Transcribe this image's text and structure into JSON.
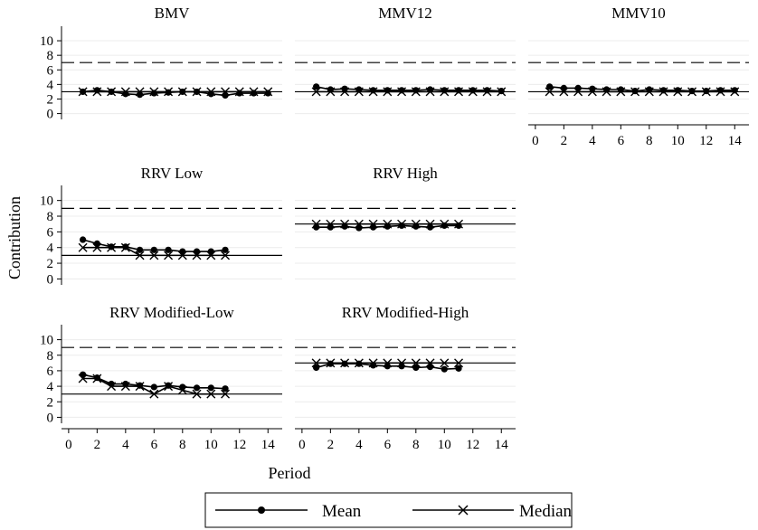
{
  "chart_data": {
    "type": "line",
    "ylabel": "Contribution",
    "xlabel": "Period",
    "x_ticks": [
      0,
      2,
      4,
      6,
      8,
      10,
      12,
      14
    ],
    "y_ticks": [
      0,
      2,
      4,
      6,
      8,
      10
    ],
    "xlim": [
      -0.5,
      15
    ],
    "ylim": [
      -0.3,
      11
    ],
    "grid": true,
    "legend": {
      "placement": "bottom-center",
      "entries": [
        {
          "name": "Mean",
          "marker": "circle"
        },
        {
          "name": "Median",
          "marker": "x"
        }
      ]
    },
    "panels": [
      {
        "title": "BMV",
        "reference_lines": {
          "solid": 3,
          "dashed": 7
        },
        "series": [
          {
            "name": "Mean",
            "x": [
              1,
              2,
              3,
              4,
              5,
              6,
              7,
              8,
              9,
              10,
              11,
              12,
              13,
              14
            ],
            "values": [
              3.0,
              3.2,
              3.0,
              2.7,
              2.6,
              2.8,
              2.9,
              3.0,
              3.0,
              2.7,
              2.5,
              2.8,
              2.8,
              2.8
            ]
          },
          {
            "name": "Median",
            "x": [
              1,
              2,
              3,
              4,
              5,
              6,
              7,
              8,
              9,
              10,
              11,
              12,
              13,
              14
            ],
            "values": [
              3,
              3,
              3,
              3,
              3,
              3,
              3,
              3,
              3,
              3,
              3,
              3,
              3,
              3
            ]
          }
        ]
      },
      {
        "title": "MMV12",
        "reference_lines": {
          "solid": 3,
          "dashed": 7
        },
        "series": [
          {
            "name": "Mean",
            "x": [
              1,
              2,
              3,
              4,
              5,
              6,
              7,
              8,
              9,
              10,
              11,
              12,
              13,
              14
            ],
            "values": [
              3.7,
              3.3,
              3.4,
              3.3,
              3.2,
              3.2,
              3.2,
              3.2,
              3.3,
              3.2,
              3.2,
              3.2,
              3.2,
              3.1
            ]
          },
          {
            "name": "Median",
            "x": [
              1,
              2,
              3,
              4,
              5,
              6,
              7,
              8,
              9,
              10,
              11,
              12,
              13,
              14
            ],
            "values": [
              3,
              3,
              3,
              3,
              3,
              3,
              3,
              3,
              3,
              3,
              3,
              3,
              3,
              3
            ]
          }
        ]
      },
      {
        "title": "MMV10",
        "reference_lines": {
          "solid": 3,
          "dashed": 7
        },
        "series": [
          {
            "name": "Mean",
            "x": [
              1,
              2,
              3,
              4,
              5,
              6,
              7,
              8,
              9,
              10,
              11,
              12,
              13,
              14
            ],
            "values": [
              3.7,
              3.5,
              3.5,
              3.4,
              3.3,
              3.3,
              3.1,
              3.3,
              3.2,
              3.2,
              3.1,
              3.1,
              3.2,
              3.2
            ]
          },
          {
            "name": "Median",
            "x": [
              1,
              2,
              3,
              4,
              5,
              6,
              7,
              8,
              9,
              10,
              11,
              12,
              13,
              14
            ],
            "values": [
              3,
              3,
              3,
              3,
              3,
              3,
              3,
              3,
              3,
              3,
              3,
              3,
              3,
              3
            ]
          }
        ]
      },
      {
        "title": "RRV Low",
        "reference_lines": {
          "solid": 3,
          "dashed": 9
        },
        "series": [
          {
            "name": "Mean",
            "x": [
              1,
              2,
              3,
              4,
              5,
              6,
              7,
              8,
              9,
              10,
              11
            ],
            "values": [
              5.0,
              4.5,
              4.1,
              4.1,
              3.7,
              3.7,
              3.7,
              3.5,
              3.5,
              3.5,
              3.7
            ]
          },
          {
            "name": "Median",
            "x": [
              1,
              2,
              3,
              4,
              5,
              6,
              7,
              8,
              9,
              10,
              11
            ],
            "values": [
              4,
              4,
              4,
              4,
              3,
              3,
              3,
              3,
              3,
              3,
              3
            ]
          }
        ]
      },
      {
        "title": "RRV High",
        "reference_lines": {
          "solid": 7,
          "dashed": 9
        },
        "series": [
          {
            "name": "Mean",
            "x": [
              1,
              2,
              3,
              4,
              5,
              6,
              7,
              8,
              9,
              10,
              11
            ],
            "values": [
              6.6,
              6.6,
              6.7,
              6.5,
              6.6,
              6.7,
              6.8,
              6.7,
              6.6,
              6.8,
              6.8
            ]
          },
          {
            "name": "Median",
            "x": [
              1,
              2,
              3,
              4,
              5,
              6,
              7,
              8,
              9,
              10,
              11
            ],
            "values": [
              7,
              7,
              7,
              7,
              7,
              7,
              7,
              7,
              7,
              7,
              7
            ]
          }
        ]
      },
      {
        "title": "RRV Modified-Low",
        "reference_lines": {
          "solid": 3,
          "dashed": 9
        },
        "series": [
          {
            "name": "Mean",
            "x": [
              1,
              2,
              3,
              4,
              5,
              6,
              7,
              8,
              9,
              10,
              11
            ],
            "values": [
              5.5,
              5.1,
              4.3,
              4.3,
              4.1,
              3.9,
              4.1,
              3.9,
              3.8,
              3.8,
              3.7
            ]
          },
          {
            "name": "Median",
            "x": [
              1,
              2,
              3,
              4,
              5,
              6,
              7,
              8,
              9,
              10,
              11
            ],
            "values": [
              5,
              5,
              4,
              4,
              4,
              3,
              4,
              3.5,
              3,
              3,
              3
            ]
          }
        ]
      },
      {
        "title": "RRV Modified-High",
        "reference_lines": {
          "solid": 7,
          "dashed": 9
        },
        "series": [
          {
            "name": "Mean",
            "x": [
              1,
              2,
              3,
              4,
              5,
              6,
              7,
              8,
              9,
              10,
              11
            ],
            "values": [
              6.4,
              6.9,
              6.9,
              6.9,
              6.7,
              6.6,
              6.6,
              6.4,
              6.5,
              6.2,
              6.3
            ]
          },
          {
            "name": "Median",
            "x": [
              1,
              2,
              3,
              4,
              5,
              6,
              7,
              8,
              9,
              10,
              11
            ],
            "values": [
              7,
              7,
              7,
              7,
              7,
              7,
              7,
              7,
              7,
              7,
              7
            ]
          }
        ]
      }
    ]
  }
}
